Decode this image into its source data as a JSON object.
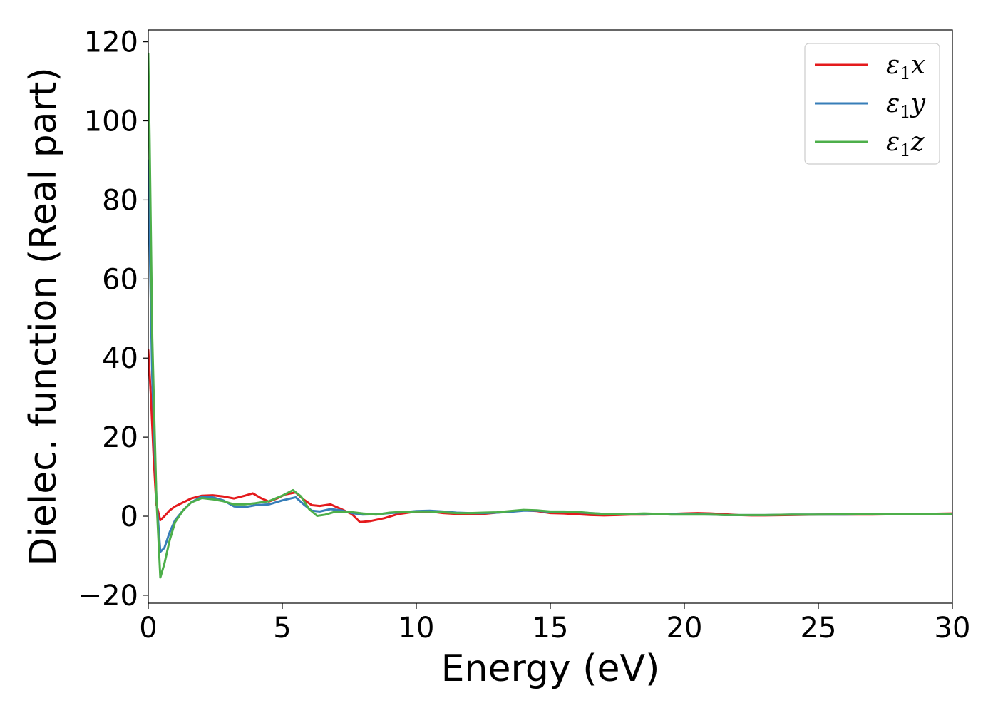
{
  "chart_data": {
    "type": "line",
    "title": "",
    "xlabel": "Energy (eV)",
    "ylabel": "Dielec. function (Real part)",
    "xlim": [
      0,
      30
    ],
    "ylim": [
      -22,
      123
    ],
    "xticks": [
      0,
      5,
      10,
      15,
      20,
      25,
      30
    ],
    "yticks": [
      -20,
      0,
      20,
      40,
      60,
      80,
      100,
      120
    ],
    "xtick_labels": [
      "0",
      "5",
      "10",
      "15",
      "20",
      "25",
      "30"
    ],
    "ytick_labels": [
      "−20",
      "0",
      "20",
      "40",
      "60",
      "80",
      "100",
      "120"
    ],
    "grid": false,
    "legend_position": "top-right",
    "series": [
      {
        "name": "ε₁x",
        "legend_base": "ε",
        "legend_sub": "1",
        "legend_tail": "x",
        "color": "#e41a1c",
        "x": [
          0,
          0.1,
          0.2,
          0.3,
          0.45,
          0.6,
          0.8,
          1.0,
          1.3,
          1.6,
          2.0,
          2.4,
          2.8,
          3.2,
          3.6,
          3.9,
          4.2,
          4.5,
          4.8,
          5.1,
          5.5,
          5.8,
          6.1,
          6.4,
          6.8,
          7.2,
          7.6,
          7.9,
          8.3,
          8.8,
          9.3,
          9.8,
          10.5,
          11.0,
          11.5,
          12.0,
          12.5,
          13.0,
          13.5,
          14.0,
          14.5,
          15.0,
          15.5,
          16.0,
          16.5,
          17.0,
          17.5,
          18.0,
          18.5,
          19.0,
          19.5,
          20.0,
          20.5,
          21.0,
          21.5,
          22.0,
          22.5,
          23.0,
          24.0,
          25.0,
          26.0,
          27.0,
          28.0,
          29.0,
          30.0
        ],
        "y": [
          42,
          30,
          15,
          3,
          -1,
          0,
          1.5,
          2.5,
          3.5,
          4.5,
          5.2,
          5.3,
          5.0,
          4.5,
          5.2,
          5.8,
          4.6,
          3.7,
          4.5,
          5.5,
          6.0,
          4.2,
          2.8,
          2.6,
          3.0,
          1.8,
          0.5,
          -1.5,
          -1.2,
          -0.5,
          0.5,
          1.0,
          1.2,
          0.8,
          0.6,
          0.5,
          0.6,
          0.9,
          1.2,
          1.5,
          1.3,
          0.8,
          0.7,
          0.5,
          0.3,
          0.2,
          0.3,
          0.4,
          0.4,
          0.5,
          0.6,
          0.7,
          0.8,
          0.7,
          0.5,
          0.3,
          0.2,
          0.2,
          0.3,
          0.4,
          0.4,
          0.4,
          0.5,
          0.6,
          0.7
        ]
      },
      {
        "name": "ε₁y",
        "legend_base": "ε",
        "legend_sub": "1",
        "legend_tail": "y",
        "color": "#377eb8",
        "x": [
          0,
          0.05,
          0.15,
          0.3,
          0.45,
          0.6,
          0.8,
          1.0,
          1.3,
          1.6,
          2.0,
          2.4,
          2.8,
          3.2,
          3.6,
          4.0,
          4.5,
          5.0,
          5.5,
          5.8,
          6.1,
          6.4,
          6.8,
          7.2,
          7.6,
          8.0,
          8.5,
          9.0,
          9.5,
          10.0,
          10.5,
          11.0,
          11.5,
          12.0,
          12.5,
          13.0,
          13.5,
          14.0,
          14.5,
          15.0,
          15.5,
          16.0,
          16.5,
          17.0,
          17.5,
          18.0,
          18.5,
          19.0,
          19.5,
          20.0,
          20.5,
          21.0,
          21.5,
          22.0,
          22.5,
          23.0,
          24.0,
          25.0,
          26.0,
          27.0,
          28.0,
          29.0,
          30.0
        ],
        "y": [
          90,
          70,
          35,
          5,
          -9,
          -8,
          -4,
          -1,
          1.5,
          3.5,
          5.0,
          4.8,
          4.0,
          2.5,
          2.3,
          2.8,
          3.0,
          4.0,
          4.8,
          3.0,
          1.4,
          1.2,
          1.8,
          1.5,
          0.8,
          0.4,
          0.5,
          0.8,
          1.0,
          1.3,
          1.4,
          1.2,
          0.9,
          0.8,
          0.8,
          0.9,
          1.1,
          1.4,
          1.4,
          1.1,
          1.0,
          1.0,
          0.8,
          0.6,
          0.5,
          0.5,
          0.6,
          0.6,
          0.6,
          0.6,
          0.5,
          0.4,
          0.3,
          0.3,
          0.3,
          0.3,
          0.4,
          0.4,
          0.4,
          0.5,
          0.5,
          0.6,
          0.6
        ]
      },
      {
        "name": "ε₁z",
        "legend_base": "ε",
        "legend_sub": "1",
        "legend_tail": "z",
        "color": "#4daf4a",
        "x": [
          0,
          0.05,
          0.15,
          0.3,
          0.45,
          0.6,
          0.8,
          1.0,
          1.3,
          1.6,
          2.0,
          2.4,
          2.8,
          3.2,
          3.6,
          4.0,
          4.5,
          5.0,
          5.4,
          5.7,
          6.0,
          6.3,
          6.6,
          7.0,
          7.5,
          8.0,
          8.5,
          9.0,
          9.5,
          10.0,
          10.5,
          11.0,
          11.5,
          12.0,
          12.5,
          13.0,
          13.5,
          14.0,
          14.5,
          15.0,
          15.5,
          16.0,
          16.5,
          17.0,
          17.5,
          18.0,
          18.5,
          19.0,
          19.5,
          20.0,
          20.5,
          21.0,
          21.5,
          22.0,
          22.5,
          23.0,
          24.0,
          25.0,
          26.0,
          27.0,
          28.0,
          29.0,
          30.0
        ],
        "y": [
          117,
          95,
          45,
          5,
          -15.5,
          -12,
          -6,
          -1.5,
          1.5,
          3.5,
          4.6,
          4.3,
          3.8,
          3.0,
          3.0,
          3.3,
          3.8,
          5.2,
          6.6,
          5.0,
          1.8,
          0.1,
          0.4,
          1.2,
          1.1,
          0.7,
          0.4,
          0.9,
          1.1,
          1.2,
          1.2,
          1.0,
          0.8,
          0.8,
          0.9,
          1.0,
          1.3,
          1.6,
          1.5,
          1.2,
          1.2,
          1.1,
          0.8,
          0.6,
          0.6,
          0.6,
          0.7,
          0.6,
          0.4,
          0.4,
          0.4,
          0.4,
          0.3,
          0.3,
          0.3,
          0.3,
          0.4,
          0.4,
          0.5,
          0.5,
          0.6,
          0.6,
          0.6
        ]
      }
    ]
  }
}
